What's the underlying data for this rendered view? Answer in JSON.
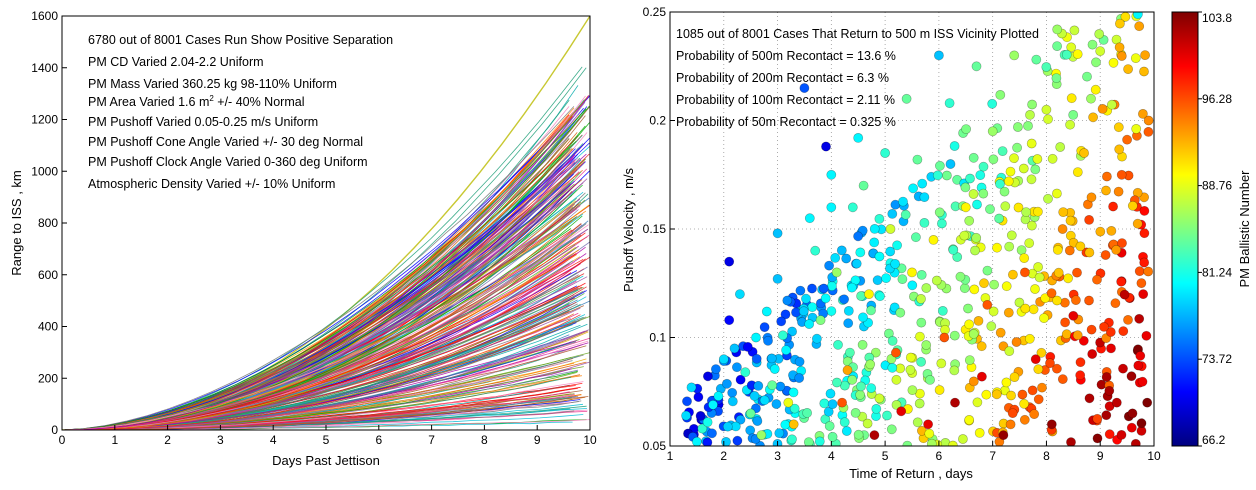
{
  "chart_data": [
    {
      "type": "line",
      "title": "",
      "xlabel": "Days Past Jettison",
      "ylabel": "Range to ISS , km",
      "xlim": [
        0,
        10
      ],
      "ylim": [
        0,
        1600
      ],
      "xticks": [
        0,
        1,
        2,
        3,
        4,
        5,
        6,
        7,
        8,
        9,
        10
      ],
      "yticks": [
        0,
        200,
        400,
        600,
        800,
        1000,
        1200,
        1400,
        1600
      ],
      "grid": false,
      "annotations": [
        "6780 out of 8001 Cases Run Show Positive Separation",
        "PM CD Varied 2.04-2.2 Uniform",
        "PM Mass Varied 360.25 kg 98-110% Uniform",
        "PM Area Varied 1.6 m",
        "2",
        " +/- 40% Normal",
        "PM Pushoff Varied 0.05-0.25 m/s Uniform",
        "PM Pushoff Cone Angle Varied +/- 30 deg Normal",
        "PM Pushoff Clock Angle Varied 0-360 deg Uniform",
        "Atmospheric Density Varied +/- 10% Uniform"
      ],
      "series_range": {
        "representative_final_values_km_at_day_10": [
          1600,
          1440,
          1420,
          1400,
          1380,
          1350,
          1320,
          1300,
          1270,
          1240,
          1200,
          1170,
          1140,
          1100,
          1060,
          1020,
          980,
          940,
          900,
          860,
          820,
          780,
          740,
          700,
          660,
          620,
          580,
          540,
          500,
          460,
          420,
          380,
          340,
          300,
          260,
          220,
          180,
          140,
          100,
          60
        ],
        "growth": "approximately quadratic in time"
      }
    },
    {
      "type": "scatter",
      "title": "",
      "xlabel": "Time of Return , days",
      "ylabel": "Pushoff Velocity , m/s",
      "xlim": [
        1,
        10
      ],
      "ylim": [
        0.05,
        0.25
      ],
      "xticks": [
        1,
        2,
        3,
        4,
        5,
        6,
        7,
        8,
        9,
        10
      ],
      "yticks": [
        0.05,
        0.1,
        0.15,
        0.2,
        0.25
      ],
      "grid": true,
      "annotations": [
        "1085 out of 8001 Cases That Return to 500 m ISS Vicinity Plotted",
        "Probability of 500m Recontact = 13.6 %",
        "Probability of 200m Recontact = 6.3 %",
        "Probability of 100m Recontact = 2.11 %",
        "Probability of  50m Recontact = 0.325 %"
      ],
      "colorbar": {
        "label": "PM Ballistic Number",
        "range": [
          66.2,
          103.8
        ],
        "ticks": [
          "103.8",
          "96.28",
          "88.76",
          "81.24",
          "73.72",
          "66.2"
        ],
        "colormap": "jet"
      },
      "points_note": "x = time of return (days), y = pushoff velocity (m/s), c = ballistic number",
      "points": [
        [
          1.3,
          0.064,
          79
        ],
        [
          1.4,
          0.077,
          79
        ],
        [
          1.5,
          0.052,
          80
        ],
        [
          1.6,
          0.058,
          82
        ],
        [
          1.7,
          0.061,
          81
        ],
        [
          1.8,
          0.069,
          80
        ],
        [
          1.9,
          0.073,
          80
        ],
        [
          2.0,
          0.09,
          79
        ],
        [
          2.1,
          0.135,
          70
        ],
        [
          2.1,
          0.108,
          71
        ],
        [
          2.2,
          0.095,
          78
        ],
        [
          2.3,
          0.12,
          79
        ],
        [
          2.4,
          0.084,
          82
        ],
        [
          2.5,
          0.065,
          84
        ],
        [
          2.6,
          0.1,
          80
        ],
        [
          2.7,
          0.055,
          86
        ],
        [
          2.8,
          0.112,
          80
        ],
        [
          2.9,
          0.078,
          84
        ],
        [
          3.0,
          0.127,
          78
        ],
        [
          3.0,
          0.148,
          78
        ],
        [
          3.1,
          0.101,
          82
        ],
        [
          3.2,
          0.07,
          89
        ],
        [
          3.3,
          0.06,
          92
        ],
        [
          3.5,
          0.215,
          74
        ],
        [
          3.6,
          0.155,
          80
        ],
        [
          3.7,
          0.14,
          82
        ],
        [
          3.8,
          0.108,
          85
        ],
        [
          3.9,
          0.188,
          70
        ],
        [
          4.0,
          0.16,
          80
        ],
        [
          4.0,
          0.175,
          80
        ],
        [
          4.1,
          0.13,
          86
        ],
        [
          4.2,
          0.07,
          96
        ],
        [
          4.3,
          0.085,
          93
        ],
        [
          4.4,
          0.16,
          82
        ],
        [
          4.5,
          0.192,
          80
        ],
        [
          4.6,
          0.17,
          84
        ],
        [
          4.7,
          0.12,
          90
        ],
        [
          4.8,
          0.055,
          102
        ],
        [
          5.0,
          0.185,
          82
        ],
        [
          5.1,
          0.15,
          88
        ],
        [
          5.2,
          0.093,
          96
        ],
        [
          5.3,
          0.066,
          100
        ],
        [
          5.4,
          0.21,
          84
        ],
        [
          5.5,
          0.13,
          90
        ],
        [
          5.6,
          0.182,
          84
        ],
        [
          5.8,
          0.06,
          100
        ],
        [
          5.9,
          0.145,
          90
        ],
        [
          6.0,
          0.23,
          78
        ],
        [
          6.1,
          0.1,
          96
        ],
        [
          6.2,
          0.208,
          82
        ],
        [
          6.3,
          0.07,
          102
        ],
        [
          6.5,
          0.16,
          90
        ],
        [
          6.7,
          0.225,
          84
        ],
        [
          6.8,
          0.082,
          100
        ],
        [
          6.9,
          0.115,
          96
        ],
        [
          7.0,
          0.195,
          86
        ],
        [
          7.2,
          0.055,
          103
        ],
        [
          7.3,
          0.172,
          90
        ],
        [
          7.4,
          0.23,
          86
        ],
        [
          7.6,
          0.13,
          96
        ],
        [
          7.8,
          0.09,
          100
        ],
        [
          8.0,
          0.205,
          88
        ],
        [
          8.1,
          0.06,
          103
        ],
        [
          8.2,
          0.242,
          86
        ],
        [
          8.3,
          0.15,
          94
        ],
        [
          8.5,
          0.11,
          100
        ],
        [
          8.7,
          0.185,
          92
        ],
        [
          8.8,
          0.072,
          102
        ],
        [
          9.0,
          0.232,
          88
        ],
        [
          9.1,
          0.138,
          96
        ],
        [
          9.2,
          0.095,
          100
        ],
        [
          9.4,
          0.175,
          96
        ],
        [
          9.6,
          0.065,
          103
        ],
        [
          9.7,
          0.249,
          80
        ],
        [
          9.8,
          0.12,
          100
        ],
        [
          9.9,
          0.2,
          94
        ]
      ]
    }
  ]
}
